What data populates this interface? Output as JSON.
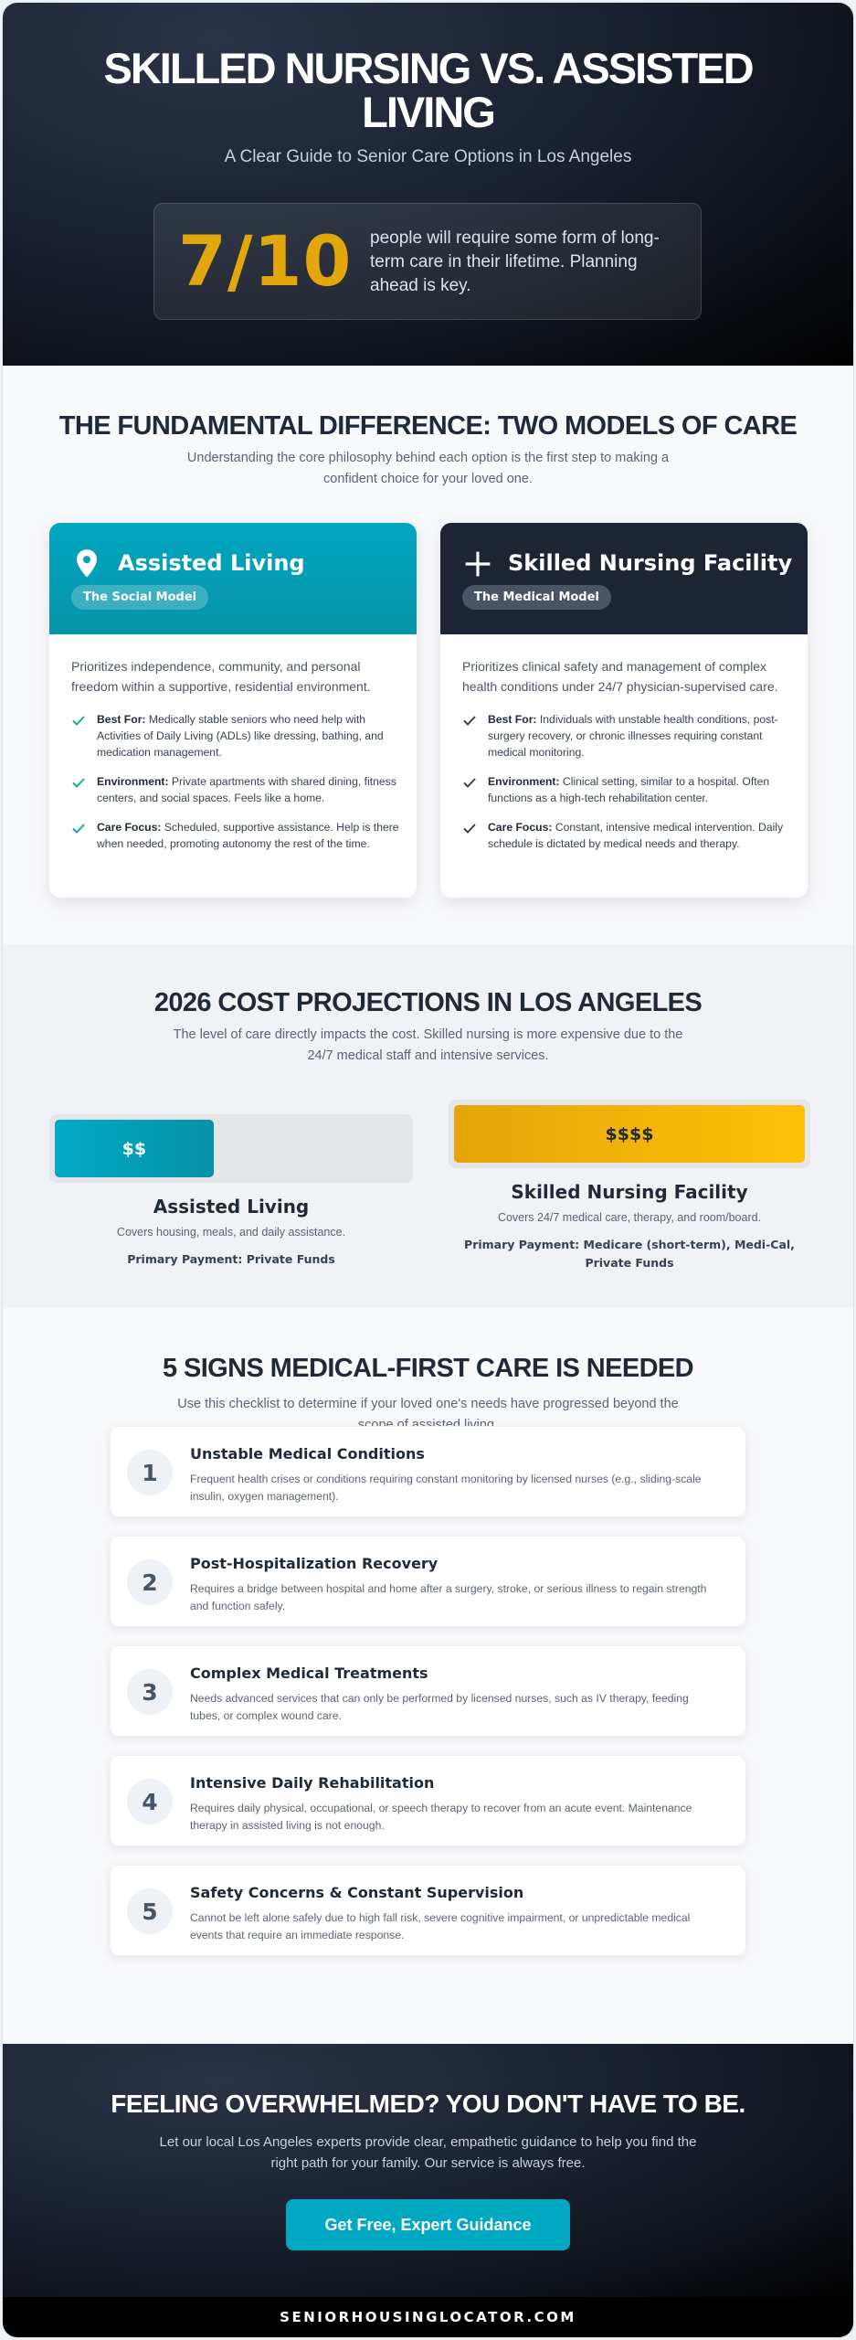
{
  "hero": {
    "title": "SKILLED NURSING VS. ASSISTED LIVING",
    "subtitle": "A Clear Guide to Senior Care Options in Los Angeles",
    "stat_value": "7/10",
    "stat_text": "people will require some form of long-term care in their lifetime. Planning ahead is key."
  },
  "difference": {
    "title": "THE FUNDAMENTAL DIFFERENCE: TWO MODELS OF CARE",
    "desc": "Understanding the core philosophy behind each option is the first step to making a confident choice for your loved one.",
    "assisted": {
      "icon": "map-pin-icon",
      "title": "Assisted Living",
      "pill": "The Social Model",
      "intro": "Prioritizes independence, community, and personal freedom within a supportive, residential environment.",
      "items": [
        {
          "label": "Best For:",
          "text": " Medically stable seniors who need help with Activities of Daily Living (ADLs) like dressing, bathing, and medication management."
        },
        {
          "label": "Environment:",
          "text": " Private apartments with shared dining, fitness centers, and social spaces. Feels like a home."
        },
        {
          "label": "Care Focus:",
          "text": " Scheduled, supportive assistance. Help is there when needed, promoting autonomy the rest of the time."
        }
      ]
    },
    "skilled": {
      "icon": "medical-cross-icon",
      "title": "Skilled Nursing Facility",
      "pill": "The Medical Model",
      "intro": "Prioritizes clinical safety and management of complex health conditions under 24/7 physician-supervised care.",
      "items": [
        {
          "label": "Best For:",
          "text": " Individuals with unstable health conditions, post-surgery recovery, or chronic illnesses requiring constant medical monitoring."
        },
        {
          "label": "Environment:",
          "text": " Clinical setting, similar to a hospital. Often functions as a high-tech rehabilitation center."
        },
        {
          "label": "Care Focus:",
          "text": " Constant, intensive medical intervention. Daily schedule is dictated by medical needs and therapy."
        }
      ]
    },
    "accent_color": "#00a6c0",
    "check_color": "#14a8a0"
  },
  "costs": {
    "title": "2026 COST PROJECTIONS IN LOS ANGELES",
    "desc": "The level of care directly impacts the cost. Skilled nursing is more expensive due to the 24/7 medical staff and intensive services.",
    "assisted": {
      "bar_label": "$$",
      "level_fraction": 0.45,
      "name": "Assisted Living",
      "desc": "Covers housing, meals, and daily assistance.",
      "payment": "Primary Payment: Private Funds"
    },
    "skilled": {
      "bar_label": "$$$$",
      "level_fraction": 1.0,
      "name": "Skilled Nursing Facility",
      "desc": "Covers 24/7 medical care, therapy, and room/board.",
      "payment": "Primary Payment: Medicare (short-term), Medi-Cal, Private Funds"
    }
  },
  "signs": {
    "title": "5 SIGNS MEDICAL-FIRST CARE IS NEEDED",
    "desc": "Use this checklist to determine if your loved one's needs have progressed beyond the scope of assisted living.",
    "items": [
      {
        "num": "1",
        "title": "Unstable Medical Conditions",
        "desc": "Frequent health crises or conditions requiring constant monitoring by licensed nurses (e.g., sliding-scale insulin, oxygen management)."
      },
      {
        "num": "2",
        "title": "Post-Hospitalization Recovery",
        "desc": "Requires a bridge between hospital and home after a surgery, stroke, or serious illness to regain strength and function safely."
      },
      {
        "num": "3",
        "title": "Complex Medical Treatments",
        "desc": "Needs advanced services that can only be performed by licensed nurses, such as IV therapy, feeding tubes, or complex wound care."
      },
      {
        "num": "4",
        "title": "Intensive Daily Rehabilitation",
        "desc": "Requires daily physical, occupational, or speech therapy to recover from an acute event. Maintenance therapy in assisted living is not enough."
      },
      {
        "num": "5",
        "title": "Safety Concerns & Constant Supervision",
        "desc": "Cannot be left alone safely due to high fall risk, severe cognitive impairment, or unpredictable medical events that require an immediate response."
      }
    ]
  },
  "cta": {
    "title": "FEELING OVERWHELMED? YOU DON'T HAVE TO BE.",
    "desc": "Let our local Los Angeles experts provide clear, empathetic guidance to help you find the right path for your family. Our service is always free.",
    "button": "Get Free, Expert Guidance"
  },
  "footer": {
    "text": "SENIORHOUSINGLOCATOR.COM"
  }
}
